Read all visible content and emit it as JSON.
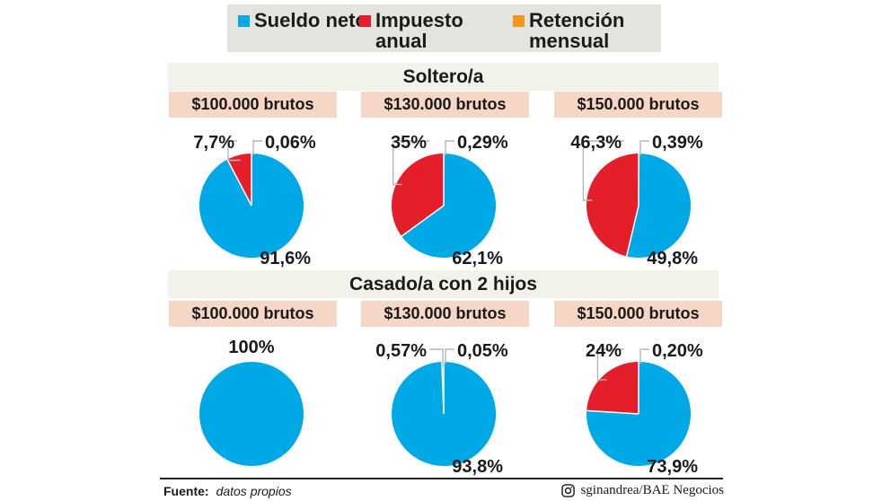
{
  "colors": {
    "sueldo_neto": "#00a9e6",
    "impuesto_anual": "#e41e2b",
    "retencion_mensual": "#f7941d",
    "legend_bg": "#e4e4de",
    "section_bg": "#f2f2ea",
    "pill_bg": "#f6d6c4"
  },
  "legend": [
    {
      "label": "Sueldo neto",
      "color": "#00a9e6"
    },
    {
      "label": "Impuesto anual",
      "color": "#e41e2b"
    },
    {
      "label": "Retención mensual",
      "color": "#f7941d"
    }
  ],
  "sections": [
    {
      "title": "Soltero/a"
    },
    {
      "title": "Casado/a con 2 hijos"
    }
  ],
  "chart_data": [
    {
      "type": "pie",
      "group": "Soltero/a",
      "title": "$100.000 brutos",
      "slices": [
        {
          "name": "Sueldo neto",
          "value": 91.6,
          "label": "91,6%"
        },
        {
          "name": "Impuesto anual",
          "value": 7.7,
          "label": "7,7%"
        },
        {
          "name": "Retención mensual",
          "value": 0.06,
          "label": "0,06%"
        }
      ]
    },
    {
      "type": "pie",
      "group": "Soltero/a",
      "title": "$130.000 brutos",
      "slices": [
        {
          "name": "Sueldo neto",
          "value": 62.1,
          "label": "62,1%"
        },
        {
          "name": "Impuesto anual",
          "value": 35,
          "label": "35%"
        },
        {
          "name": "Retención mensual",
          "value": 0.29,
          "label": "0,29%"
        }
      ]
    },
    {
      "type": "pie",
      "group": "Soltero/a",
      "title": "$150.000 brutos",
      "slices": [
        {
          "name": "Sueldo neto",
          "value": 49.8,
          "label": "49,8%"
        },
        {
          "name": "Impuesto anual",
          "value": 46.3,
          "label": "46,3%"
        },
        {
          "name": "Retención mensual",
          "value": 0.39,
          "label": "0,39%"
        }
      ]
    },
    {
      "type": "pie",
      "group": "Casado/a con 2 hijos",
      "title": "$100.000 brutos",
      "slices": [
        {
          "name": "Sueldo neto",
          "value": 100,
          "label": "100%"
        }
      ]
    },
    {
      "type": "pie",
      "group": "Casado/a con 2 hijos",
      "title": "$130.000 brutos",
      "slices": [
        {
          "name": "Sueldo neto",
          "value": 93.8,
          "label": "93,8%"
        },
        {
          "name": "Impuesto anual",
          "value": 0.57,
          "label": "0,57%"
        },
        {
          "name": "Retención mensual",
          "value": 0.05,
          "label": "0,05%"
        }
      ]
    },
    {
      "type": "pie",
      "group": "Casado/a con 2 hijos",
      "title": "$150.000 brutos",
      "slices": [
        {
          "name": "Sueldo neto",
          "value": 73.9,
          "label": "73,9%"
        },
        {
          "name": "Impuesto anual",
          "value": 24,
          "label": "24%"
        },
        {
          "name": "Retención mensual",
          "value": 0.2,
          "label": "0,20%"
        }
      ]
    }
  ],
  "footer": {
    "source_label": "Fuente:",
    "source_text": "datos propios",
    "credit": "sginandrea/BAE Negocios",
    "credit_icon": "instagram-icon"
  }
}
